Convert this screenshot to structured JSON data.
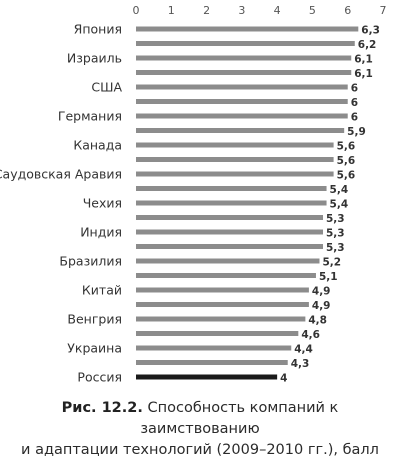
{
  "caption": {
    "label": "Рис. 12.2.",
    "line1": "Способность компаний к заимствованию",
    "line2": "и адаптации технологий (2009–2010 гг.), балл"
  },
  "chart_data": {
    "type": "bar",
    "orientation": "horizontal",
    "xlim": [
      0,
      7
    ],
    "x_ticks": [
      0,
      1,
      2,
      3,
      4,
      5,
      6,
      7
    ],
    "grid": false,
    "y_labels": [
      {
        "index": 0,
        "label": "Япония"
      },
      {
        "index": 2,
        "label": "Израиль"
      },
      {
        "index": 4,
        "label": "США"
      },
      {
        "index": 6,
        "label": "Германия"
      },
      {
        "index": 8,
        "label": "Канада"
      },
      {
        "index": 10,
        "label": "Саудовская Аравия"
      },
      {
        "index": 12,
        "label": "Чехия"
      },
      {
        "index": 14,
        "label": "Индия"
      },
      {
        "index": 16,
        "label": "Бразилия"
      },
      {
        "index": 18,
        "label": "Китай"
      },
      {
        "index": 20,
        "label": "Венгрия"
      },
      {
        "index": 22,
        "label": "Украина"
      },
      {
        "index": 24,
        "label": "Россия"
      }
    ],
    "values": [
      6.3,
      6.2,
      6.1,
      6.1,
      6,
      6,
      6,
      5.9,
      5.6,
      5.6,
      5.6,
      5.4,
      5.4,
      5.3,
      5.3,
      5.3,
      5.2,
      5.1,
      4.9,
      4.9,
      4.8,
      4.6,
      4.4,
      4.3,
      4
    ],
    "value_labels": [
      "6,3",
      "6,2",
      "6,1",
      "6,1",
      "6",
      "6",
      "6",
      "5,9",
      "5,6",
      "5,6",
      "5,6",
      "5,4",
      "5,4",
      "5,3",
      "5,3",
      "5,3",
      "5,2",
      "5,1",
      "4,9",
      "4,9",
      "4,8",
      "4,6",
      "4,4",
      "4,3",
      "4"
    ],
    "highlight_index": 24,
    "colors": {
      "bar": "#8c8c8c",
      "highlight": "#1a1a1a",
      "text": "#333333",
      "axis": "#555555"
    }
  }
}
